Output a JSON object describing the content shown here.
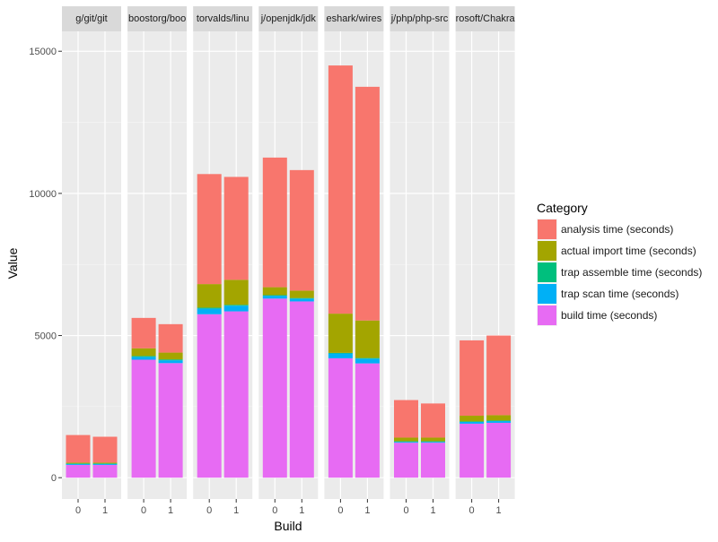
{
  "chart_data": {
    "type": "bar",
    "stacked": true,
    "faceted": true,
    "xlabel": "Build",
    "ylabel": "Value",
    "ylim": [
      -750,
      15700
    ],
    "y_ticks": [
      0,
      5000,
      10000,
      15000
    ],
    "y_tick_labels": [
      "0",
      "5000",
      "10000",
      "15000"
    ],
    "x_ticks": [
      "0",
      "1"
    ],
    "legend": {
      "title": "Category",
      "position": "right"
    },
    "series": [
      {
        "name": "analysis time (seconds)",
        "color": "#F8766D"
      },
      {
        "name": "actual import time (seconds)",
        "color": "#A3A500"
      },
      {
        "name": "trap assemble time (seconds)",
        "color": "#00BF7D"
      },
      {
        "name": "trap scan time (seconds)",
        "color": "#00B0F6"
      },
      {
        "name": "build time (seconds)",
        "color": "#E76BF3"
      }
    ],
    "stack_order": [
      "build time (seconds)",
      "trap scan time (seconds)",
      "trap assemble time (seconds)",
      "actual import time (seconds)",
      "analysis time (seconds)"
    ],
    "facets": [
      {
        "label": "g/git/git",
        "builds": [
          {
            "build": "0",
            "values": {
              "build time (seconds)": 450,
              "trap scan time (seconds)": 30,
              "trap assemble time (seconds)": 20,
              "actual import time (seconds)": 30,
              "analysis time (seconds)": 970
            }
          },
          {
            "build": "1",
            "values": {
              "build time (seconds)": 450,
              "trap scan time (seconds)": 30,
              "trap assemble time (seconds)": 20,
              "actual import time (seconds)": 30,
              "analysis time (seconds)": 910
            }
          }
        ]
      },
      {
        "label": "boostorg/boo",
        "builds": [
          {
            "build": "0",
            "values": {
              "build time (seconds)": 4150,
              "trap scan time (seconds)": 100,
              "trap assemble time (seconds)": 30,
              "actual import time (seconds)": 270,
              "analysis time (seconds)": 1070
            }
          },
          {
            "build": "1",
            "values": {
              "build time (seconds)": 4030,
              "trap scan time (seconds)": 100,
              "trap assemble time (seconds)": 30,
              "actual import time (seconds)": 240,
              "analysis time (seconds)": 1000
            }
          }
        ]
      },
      {
        "label": "torvalds/linu",
        "builds": [
          {
            "build": "0",
            "values": {
              "build time (seconds)": 5750,
              "trap scan time (seconds)": 200,
              "trap assemble time (seconds)": 30,
              "actual import time (seconds)": 830,
              "analysis time (seconds)": 3870
            }
          },
          {
            "build": "1",
            "values": {
              "build time (seconds)": 5850,
              "trap scan time (seconds)": 200,
              "trap assemble time (seconds)": 30,
              "actual import time (seconds)": 880,
              "analysis time (seconds)": 3620
            }
          }
        ]
      },
      {
        "label": "j/openjdk/jdk",
        "builds": [
          {
            "build": "0",
            "values": {
              "build time (seconds)": 6300,
              "trap scan time (seconds)": 100,
              "trap assemble time (seconds)": 20,
              "actual import time (seconds)": 280,
              "analysis time (seconds)": 4560
            }
          },
          {
            "build": "1",
            "values": {
              "build time (seconds)": 6200,
              "trap scan time (seconds)": 100,
              "trap assemble time (seconds)": 20,
              "actual import time (seconds)": 260,
              "analysis time (seconds)": 4240
            }
          }
        ]
      },
      {
        "label": "eshark/wires",
        "builds": [
          {
            "build": "0",
            "values": {
              "build time (seconds)": 4200,
              "trap scan time (seconds)": 170,
              "trap assemble time (seconds)": 20,
              "actual import time (seconds)": 1380,
              "analysis time (seconds)": 8730
            }
          },
          {
            "build": "1",
            "values": {
              "build time (seconds)": 4020,
              "trap scan time (seconds)": 170,
              "trap assemble time (seconds)": 20,
              "actual import time (seconds)": 1320,
              "analysis time (seconds)": 8220
            }
          }
        ]
      },
      {
        "label": "j/php/php-src",
        "builds": [
          {
            "build": "0",
            "values": {
              "build time (seconds)": 1230,
              "trap scan time (seconds)": 30,
              "trap assemble time (seconds)": 20,
              "actual import time (seconds)": 130,
              "analysis time (seconds)": 1320
            }
          },
          {
            "build": "1",
            "values": {
              "build time (seconds)": 1230,
              "trap scan time (seconds)": 30,
              "trap assemble time (seconds)": 20,
              "actual import time (seconds)": 130,
              "analysis time (seconds)": 1200
            }
          }
        ]
      },
      {
        "label": "rosoft/Chakra",
        "builds": [
          {
            "build": "0",
            "values": {
              "build time (seconds)": 1900,
              "trap scan time (seconds)": 60,
              "trap assemble time (seconds)": 20,
              "actual import time (seconds)": 200,
              "analysis time (seconds)": 2650
            }
          },
          {
            "build": "1",
            "values": {
              "build time (seconds)": 1930,
              "trap scan time (seconds)": 60,
              "trap assemble time (seconds)": 20,
              "actual import time (seconds)": 190,
              "analysis time (seconds)": 2800
            }
          }
        ]
      }
    ]
  }
}
